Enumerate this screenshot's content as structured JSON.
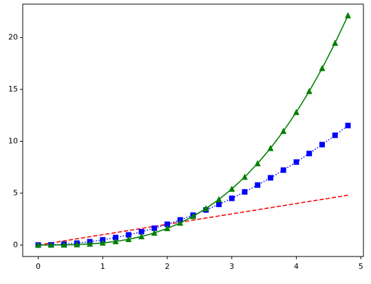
{
  "chart_data": {
    "type": "line",
    "x": [
      0,
      0.2,
      0.4,
      0.6,
      0.8,
      1,
      1.2,
      1.4,
      1.6,
      1.8,
      2,
      2.2,
      2.4,
      2.6,
      2.8,
      3,
      3.2,
      3.4,
      3.6,
      3.8,
      4,
      4.2,
      4.4,
      4.6,
      4.8
    ],
    "series": [
      {
        "color": "#ff0000",
        "linestyle": "dashed",
        "marker": null,
        "values": [
          0,
          0.2,
          0.4,
          0.6,
          0.8,
          1,
          1.2,
          1.4,
          1.6,
          1.8,
          2,
          2.2,
          2.4,
          2.6,
          2.8,
          3,
          3.2,
          3.4,
          3.6,
          3.8,
          4,
          4.2,
          4.4,
          4.6,
          4.8
        ]
      },
      {
        "color": "#0000ff",
        "linestyle": "dotted",
        "marker": "square",
        "values": [
          0,
          0.02,
          0.08,
          0.18,
          0.32,
          0.5,
          0.72,
          0.98,
          1.28,
          1.62,
          2,
          2.42,
          2.88,
          3.38,
          3.92,
          4.5,
          5.12,
          5.78,
          6.48,
          7.22,
          8,
          8.82,
          9.68,
          10.58,
          11.52
        ]
      },
      {
        "color": "#008000",
        "linestyle": "solid",
        "marker": "triangle",
        "values": [
          0,
          0.0016,
          0.0128,
          0.0432,
          0.1024,
          0.2,
          0.3456,
          0.5488,
          0.8192,
          1.1664,
          1.6,
          2.1296,
          2.7648,
          3.5152,
          4.3904,
          5.4,
          6.5536,
          7.8608,
          9.3312,
          10.9744,
          12.8,
          14.8176,
          17.0368,
          19.4672,
          22.1184
        ]
      }
    ],
    "xlim": [
      -0.24,
      5.04
    ],
    "xticks": [
      0,
      1,
      2,
      3,
      4,
      5
    ],
    "ylim": [
      -1.106,
      23.224
    ],
    "yticks": [
      0,
      5,
      10,
      15,
      20
    ],
    "grid": false
  }
}
